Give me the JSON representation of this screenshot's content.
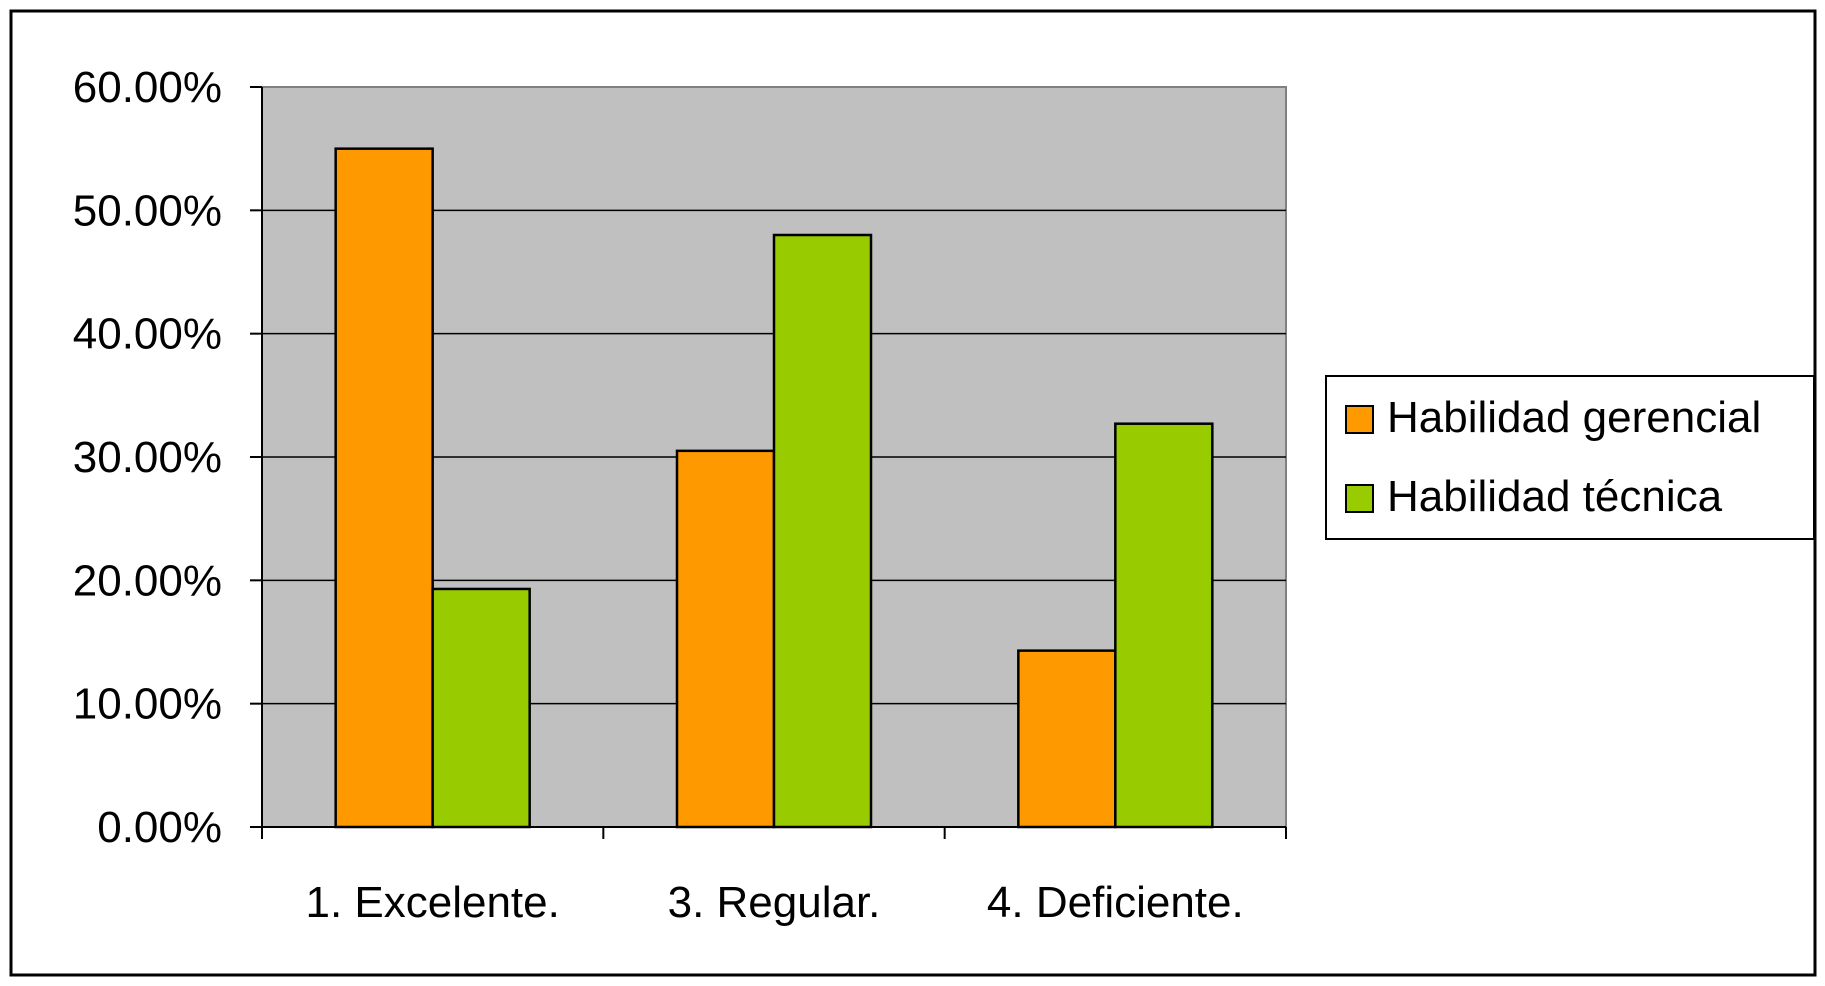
{
  "chart_data": {
    "type": "bar",
    "categories": [
      "1. Excelente.",
      "3. Regular.",
      "4. Deficiente."
    ],
    "series": [
      {
        "name": "Habilidad gerencial",
        "values": [
          55.0,
          30.5,
          14.3
        ],
        "color": "#FF9900"
      },
      {
        "name": "Habilidad técnica",
        "values": [
          19.3,
          48.0,
          32.7
        ],
        "color": "#99CC00"
      }
    ],
    "ylim": [
      0,
      60
    ],
    "yticks": [
      0,
      10,
      20,
      30,
      40,
      50,
      60
    ],
    "ytick_labels": [
      "0.00%",
      "10.00%",
      "20.00%",
      "30.00%",
      "40.00%",
      "50.00%",
      "60.00%"
    ],
    "title": "",
    "xlabel": "",
    "ylabel": "",
    "grid": true,
    "plot_background": "#C0C0C0",
    "legend_position": "right"
  }
}
